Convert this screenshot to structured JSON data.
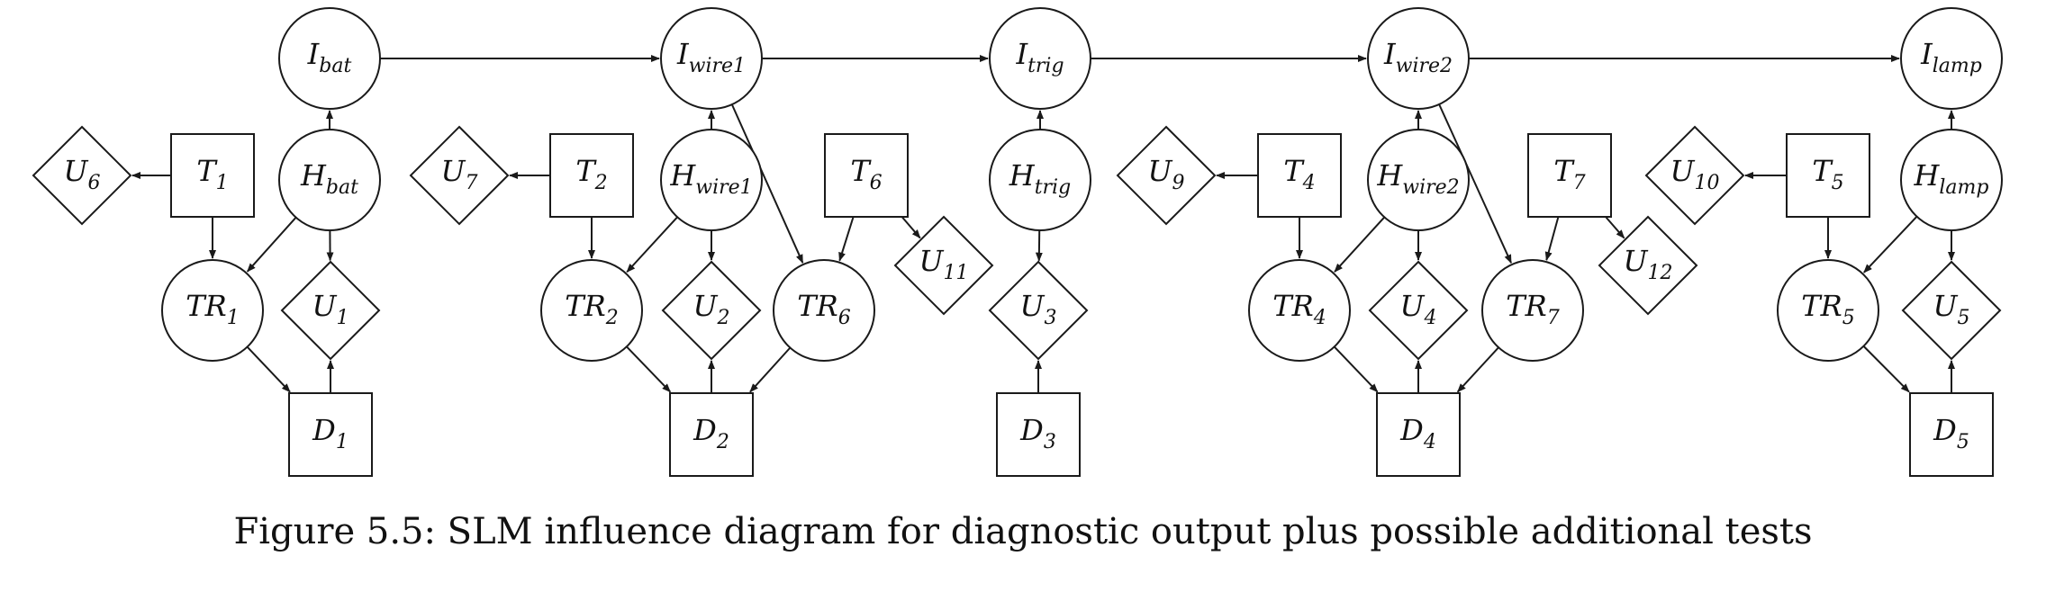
{
  "caption": "Figure 5.5: SLM influence diagram for diagnostic output plus possible additional tests",
  "nodes": [
    {
      "id": "I_bat",
      "shape": "circle",
      "main": "I",
      "sub": "bat"
    },
    {
      "id": "I_wire1",
      "shape": "circle",
      "main": "I",
      "sub": "wire1"
    },
    {
      "id": "I_trig",
      "shape": "circle",
      "main": "I",
      "sub": "trig"
    },
    {
      "id": "I_wire2",
      "shape": "circle",
      "main": "I",
      "sub": "wire2"
    },
    {
      "id": "I_lamp",
      "shape": "circle",
      "main": "I",
      "sub": "lamp"
    },
    {
      "id": "H_bat",
      "shape": "circle",
      "main": "H",
      "sub": "bat"
    },
    {
      "id": "H_wire1",
      "shape": "circle",
      "main": "H",
      "sub": "wire1"
    },
    {
      "id": "H_trig",
      "shape": "circle",
      "main": "H",
      "sub": "trig"
    },
    {
      "id": "H_wire2",
      "shape": "circle",
      "main": "H",
      "sub": "wire2"
    },
    {
      "id": "H_lamp",
      "shape": "circle",
      "main": "H",
      "sub": "lamp"
    },
    {
      "id": "TR1",
      "shape": "circle",
      "main": "TR",
      "sub": "1"
    },
    {
      "id": "TR2",
      "shape": "circle",
      "main": "TR",
      "sub": "2"
    },
    {
      "id": "TR6",
      "shape": "circle",
      "main": "TR",
      "sub": "6"
    },
    {
      "id": "TR4",
      "shape": "circle",
      "main": "TR",
      "sub": "4"
    },
    {
      "id": "TR7",
      "shape": "circle",
      "main": "TR",
      "sub": "7"
    },
    {
      "id": "TR5",
      "shape": "circle",
      "main": "TR",
      "sub": "5"
    },
    {
      "id": "T1",
      "shape": "square",
      "main": "T",
      "sub": "1"
    },
    {
      "id": "T2",
      "shape": "square",
      "main": "T",
      "sub": "2"
    },
    {
      "id": "T6",
      "shape": "square",
      "main": "T",
      "sub": "6"
    },
    {
      "id": "T4",
      "shape": "square",
      "main": "T",
      "sub": "4"
    },
    {
      "id": "T7",
      "shape": "square",
      "main": "T",
      "sub": "7"
    },
    {
      "id": "T5",
      "shape": "square",
      "main": "T",
      "sub": "5"
    },
    {
      "id": "D1",
      "shape": "square",
      "main": "D",
      "sub": "1"
    },
    {
      "id": "D2",
      "shape": "square",
      "main": "D",
      "sub": "2"
    },
    {
      "id": "D3",
      "shape": "square",
      "main": "D",
      "sub": "3"
    },
    {
      "id": "D4",
      "shape": "square",
      "main": "D",
      "sub": "4"
    },
    {
      "id": "D5",
      "shape": "square",
      "main": "D",
      "sub": "5"
    },
    {
      "id": "U6",
      "shape": "diamond",
      "main": "U",
      "sub": "6"
    },
    {
      "id": "U7",
      "shape": "diamond",
      "main": "U",
      "sub": "7"
    },
    {
      "id": "U9",
      "shape": "diamond",
      "main": "U",
      "sub": "9"
    },
    {
      "id": "U10",
      "shape": "diamond",
      "main": "U",
      "sub": "10"
    },
    {
      "id": "U1",
      "shape": "diamond",
      "main": "U",
      "sub": "1"
    },
    {
      "id": "U2",
      "shape": "diamond",
      "main": "U",
      "sub": "2"
    },
    {
      "id": "U3",
      "shape": "diamond",
      "main": "U",
      "sub": "3"
    },
    {
      "id": "U4",
      "shape": "diamond",
      "main": "U",
      "sub": "4"
    },
    {
      "id": "U5",
      "shape": "diamond",
      "main": "U",
      "sub": "5"
    },
    {
      "id": "U11",
      "shape": "diamond",
      "main": "U",
      "sub": "11"
    },
    {
      "id": "U12",
      "shape": "diamond",
      "main": "U",
      "sub": "12"
    }
  ],
  "edges": [
    [
      "I_bat",
      "I_wire1"
    ],
    [
      "I_wire1",
      "I_trig"
    ],
    [
      "I_trig",
      "I_wire2"
    ],
    [
      "I_wire2",
      "I_lamp"
    ],
    [
      "H_bat",
      "I_bat"
    ],
    [
      "H_wire1",
      "I_wire1"
    ],
    [
      "H_trig",
      "I_trig"
    ],
    [
      "H_wire2",
      "I_wire2"
    ],
    [
      "H_lamp",
      "I_lamp"
    ],
    [
      "T1",
      "U6"
    ],
    [
      "T2",
      "U7"
    ],
    [
      "T4",
      "U9"
    ],
    [
      "T5",
      "U10"
    ],
    [
      "T1",
      "TR1"
    ],
    [
      "H_bat",
      "TR1"
    ],
    [
      "H_bat",
      "U1"
    ],
    [
      "TR1",
      "D1"
    ],
    [
      "D1",
      "U1"
    ],
    [
      "T2",
      "TR2"
    ],
    [
      "H_wire1",
      "TR2"
    ],
    [
      "H_wire1",
      "U2"
    ],
    [
      "TR2",
      "D2"
    ],
    [
      "D2",
      "U2"
    ],
    [
      "I_wire1",
      "TR6"
    ],
    [
      "T6",
      "TR6"
    ],
    [
      "T6",
      "U11"
    ],
    [
      "TR6",
      "D2"
    ],
    [
      "H_trig",
      "U3"
    ],
    [
      "D3",
      "U3"
    ],
    [
      "T4",
      "TR4"
    ],
    [
      "H_wire2",
      "TR4"
    ],
    [
      "H_wire2",
      "U4"
    ],
    [
      "TR4",
      "D4"
    ],
    [
      "D4",
      "U4"
    ],
    [
      "I_wire2",
      "TR7"
    ],
    [
      "T7",
      "TR7"
    ],
    [
      "T7",
      "U12"
    ],
    [
      "TR7",
      "D4"
    ],
    [
      "T5",
      "TR5"
    ],
    [
      "H_lamp",
      "TR5"
    ],
    [
      "H_lamp",
      "U5"
    ],
    [
      "TR5",
      "D5"
    ],
    [
      "D5",
      "U5"
    ]
  ]
}
